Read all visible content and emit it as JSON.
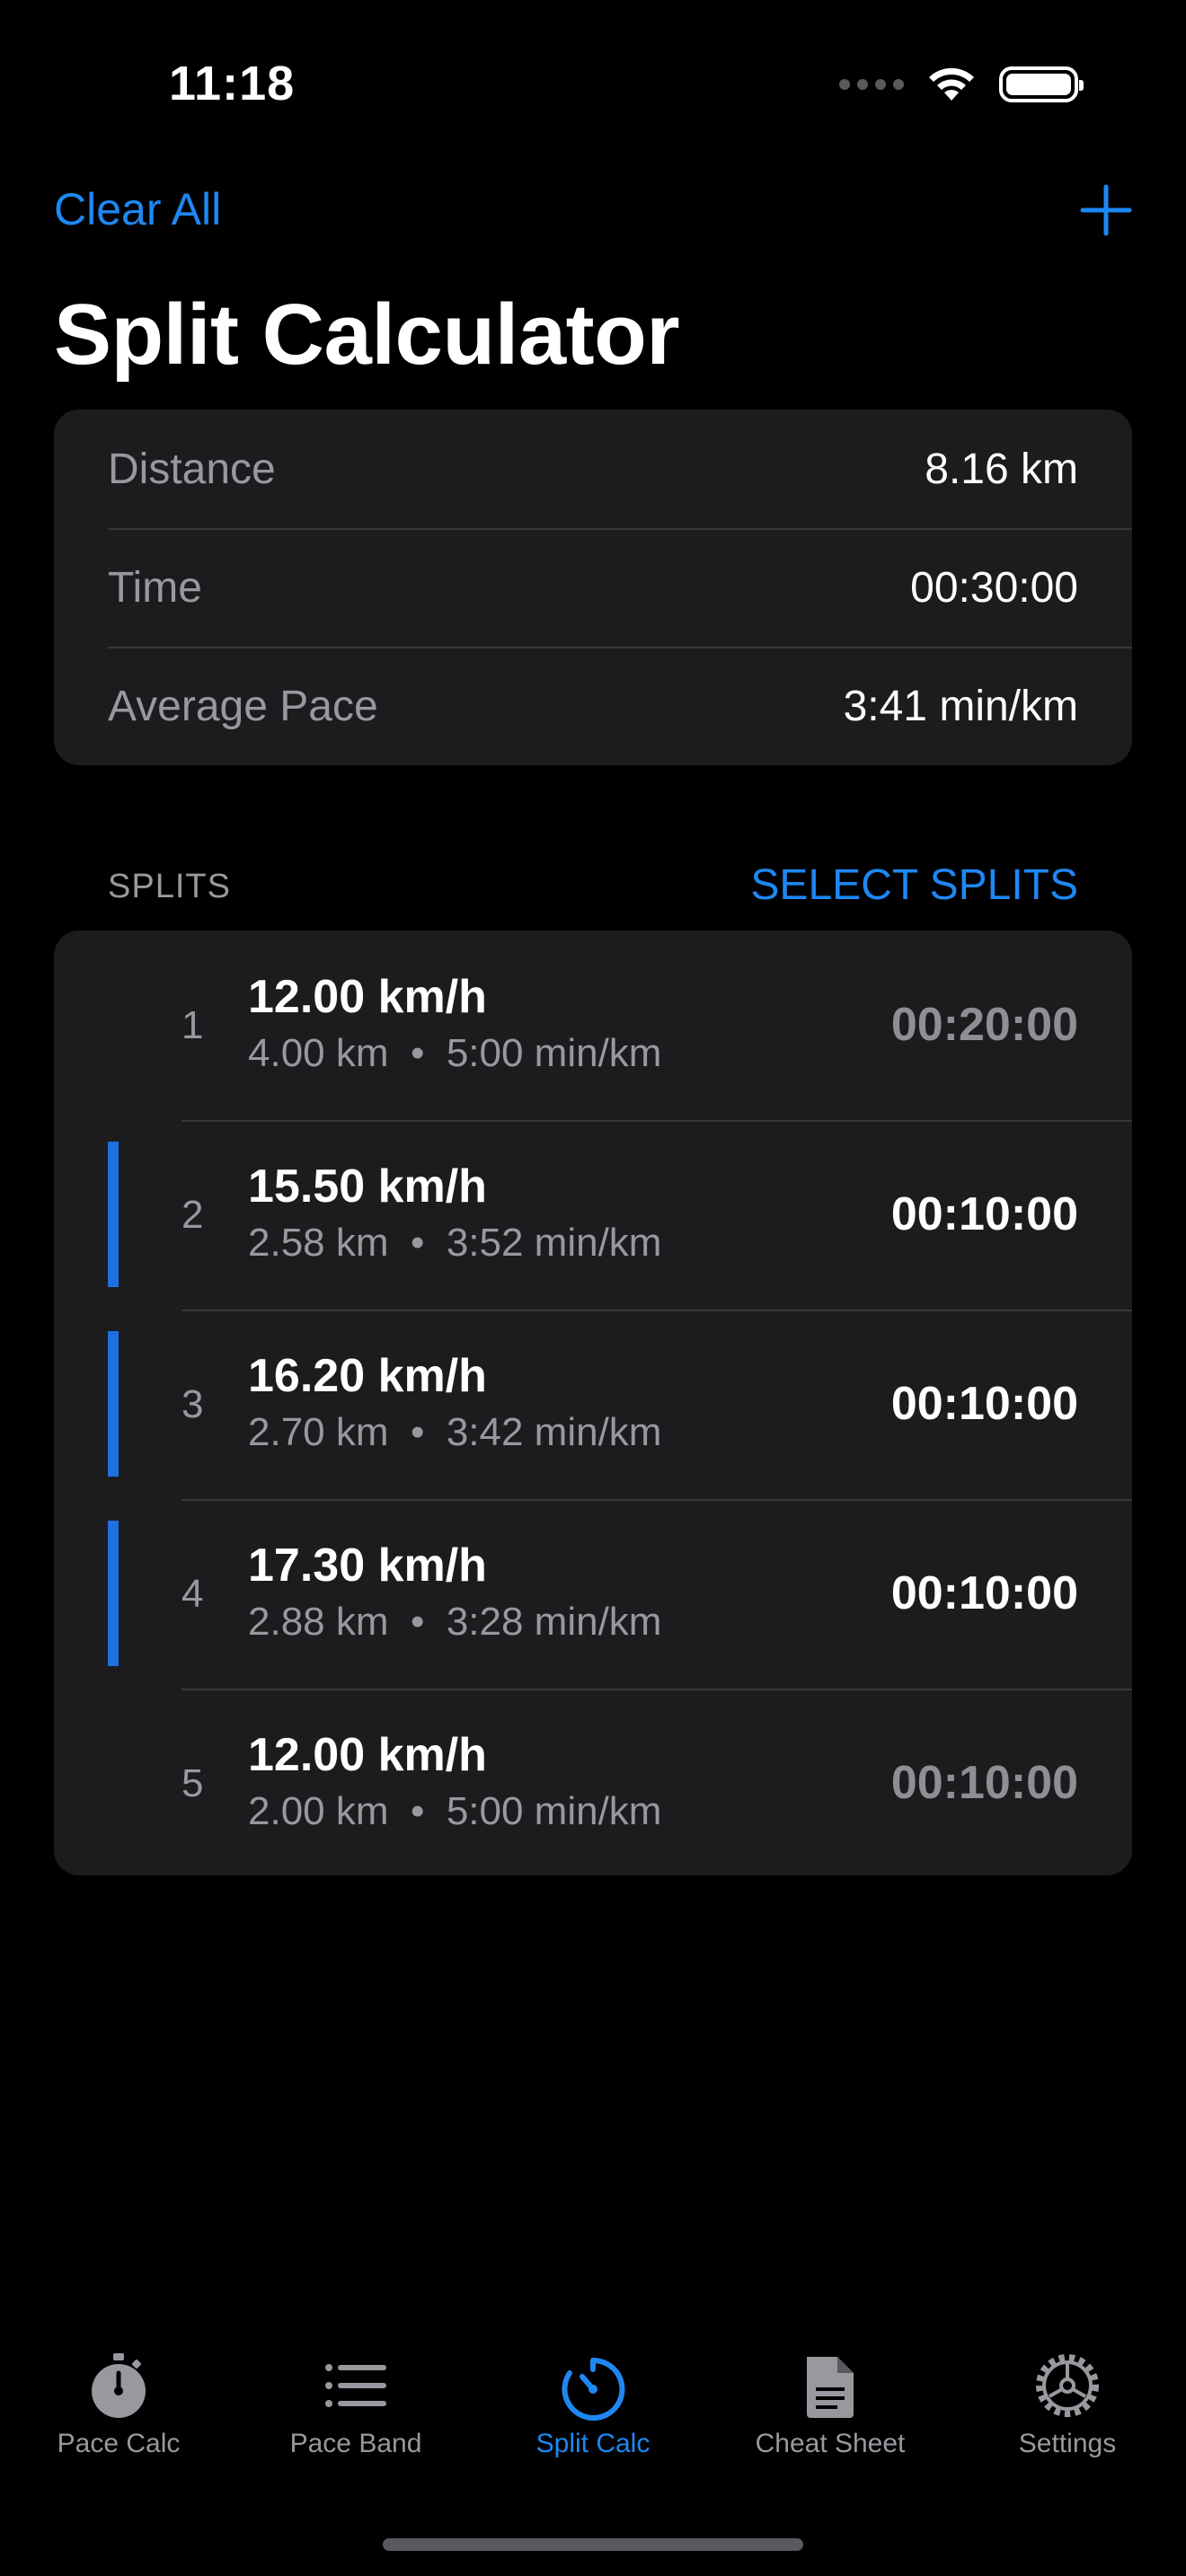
{
  "status": {
    "time": "11:18"
  },
  "nav": {
    "left_label": "Clear All",
    "title": "Split Calculator"
  },
  "summary": [
    {
      "label": "Distance",
      "value": "8.16 km"
    },
    {
      "label": "Time",
      "value": "00:30:00"
    },
    {
      "label": "Average Pace",
      "value": "3:41 min/km"
    }
  ],
  "splits_section": {
    "label": "SPLITS",
    "action": "SELECT SPLITS"
  },
  "splits": [
    {
      "number": "1",
      "speed": "12.00 km/h",
      "detail": "4.00 km  •  5:00 min/km",
      "time": "00:20:00",
      "selected": false
    },
    {
      "number": "2",
      "speed": "15.50 km/h",
      "detail": "2.58 km  •  3:52 min/km",
      "time": "00:10:00",
      "selected": true
    },
    {
      "number": "3",
      "speed": "16.20 km/h",
      "detail": "2.70 km  •  3:42 min/km",
      "time": "00:10:00",
      "selected": true
    },
    {
      "number": "4",
      "speed": "17.30 km/h",
      "detail": "2.88 km  •  3:28 min/km",
      "time": "00:10:00",
      "selected": true
    },
    {
      "number": "5",
      "speed": "12.00 km/h",
      "detail": "2.00 km  •  5:00 min/km",
      "time": "00:10:00",
      "selected": false
    }
  ],
  "tabs": [
    {
      "label": "Pace Calc",
      "icon": "stopwatch-icon",
      "active": false
    },
    {
      "label": "Pace Band",
      "icon": "list-icon",
      "active": false
    },
    {
      "label": "Split Calc",
      "icon": "timer-icon",
      "active": true
    },
    {
      "label": "Cheat Sheet",
      "icon": "document-icon",
      "active": false
    },
    {
      "label": "Settings",
      "icon": "gear-icon",
      "active": false
    }
  ],
  "colors": {
    "accent": "#1e88f2",
    "card": "#1c1c1e",
    "secondary_text": "#98989f"
  }
}
